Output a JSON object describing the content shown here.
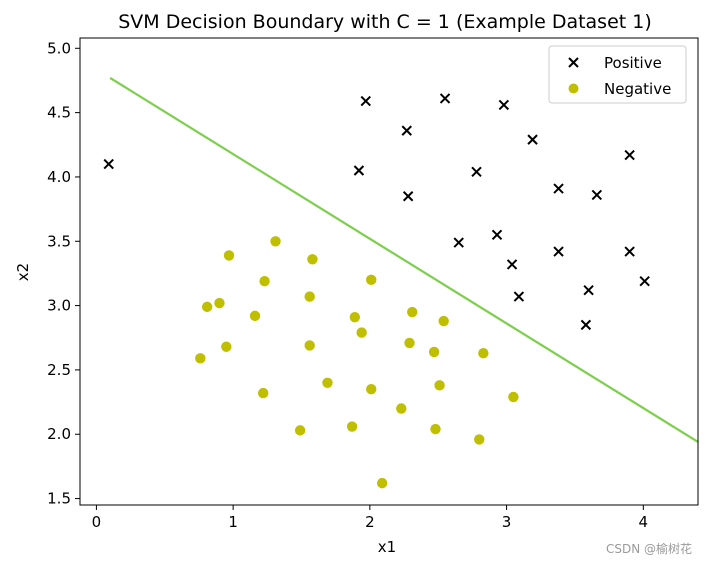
{
  "chart_data": {
    "type": "scatter",
    "title": "SVM Decision Boundary with C = 1 (Example Dataset 1)",
    "xlabel": "x1",
    "ylabel": "x2",
    "xlim": [
      -0.12,
      4.4
    ],
    "ylim": [
      1.45,
      5.08
    ],
    "xticks": [
      0,
      1,
      2,
      3,
      4
    ],
    "yticks": [
      1.5,
      2.0,
      2.5,
      3.0,
      3.5,
      4.0,
      4.5,
      5.0
    ],
    "legend_position": "top-right",
    "series": [
      {
        "name": "Positive",
        "marker": "x",
        "color": "#000000",
        "points": [
          [
            0.09,
            4.1
          ],
          [
            1.97,
            4.59
          ],
          [
            2.55,
            4.61
          ],
          [
            2.98,
            4.56
          ],
          [
            2.27,
            4.36
          ],
          [
            3.19,
            4.29
          ],
          [
            1.92,
            4.05
          ],
          [
            2.78,
            4.04
          ],
          [
            3.9,
            4.17
          ],
          [
            3.38,
            3.91
          ],
          [
            3.66,
            3.86
          ],
          [
            2.28,
            3.85
          ],
          [
            2.65,
            3.49
          ],
          [
            2.93,
            3.55
          ],
          [
            3.38,
            3.42
          ],
          [
            3.9,
            3.42
          ],
          [
            3.04,
            3.32
          ],
          [
            3.09,
            3.07
          ],
          [
            3.6,
            3.12
          ],
          [
            4.01,
            3.19
          ],
          [
            3.58,
            2.85
          ]
        ]
      },
      {
        "name": "Negative",
        "marker": "o",
        "color": "#bfbf00",
        "points": [
          [
            1.31,
            3.5
          ],
          [
            0.97,
            3.39
          ],
          [
            1.58,
            3.36
          ],
          [
            1.23,
            3.19
          ],
          [
            2.01,
            3.2
          ],
          [
            1.56,
            3.07
          ],
          [
            0.81,
            2.99
          ],
          [
            0.9,
            3.02
          ],
          [
            1.16,
            2.92
          ],
          [
            2.31,
            2.95
          ],
          [
            1.89,
            2.91
          ],
          [
            2.54,
            2.88
          ],
          [
            1.94,
            2.79
          ],
          [
            0.95,
            2.68
          ],
          [
            1.56,
            2.69
          ],
          [
            2.29,
            2.71
          ],
          [
            2.47,
            2.64
          ],
          [
            2.83,
            2.63
          ],
          [
            0.76,
            2.59
          ],
          [
            1.69,
            2.4
          ],
          [
            2.51,
            2.38
          ],
          [
            2.01,
            2.35
          ],
          [
            1.22,
            2.32
          ],
          [
            3.05,
            2.29
          ],
          [
            2.23,
            2.2
          ],
          [
            1.87,
            2.06
          ],
          [
            2.48,
            2.04
          ],
          [
            1.49,
            2.03
          ],
          [
            2.8,
            1.96
          ],
          [
            2.09,
            1.62
          ]
        ]
      }
    ],
    "boundary": {
      "name": "decision boundary",
      "color": "#7ccf4b",
      "x": [
        0.1,
        4.4
      ],
      "y": [
        4.77,
        1.94
      ]
    }
  },
  "watermark": "CSDN @榆树花"
}
